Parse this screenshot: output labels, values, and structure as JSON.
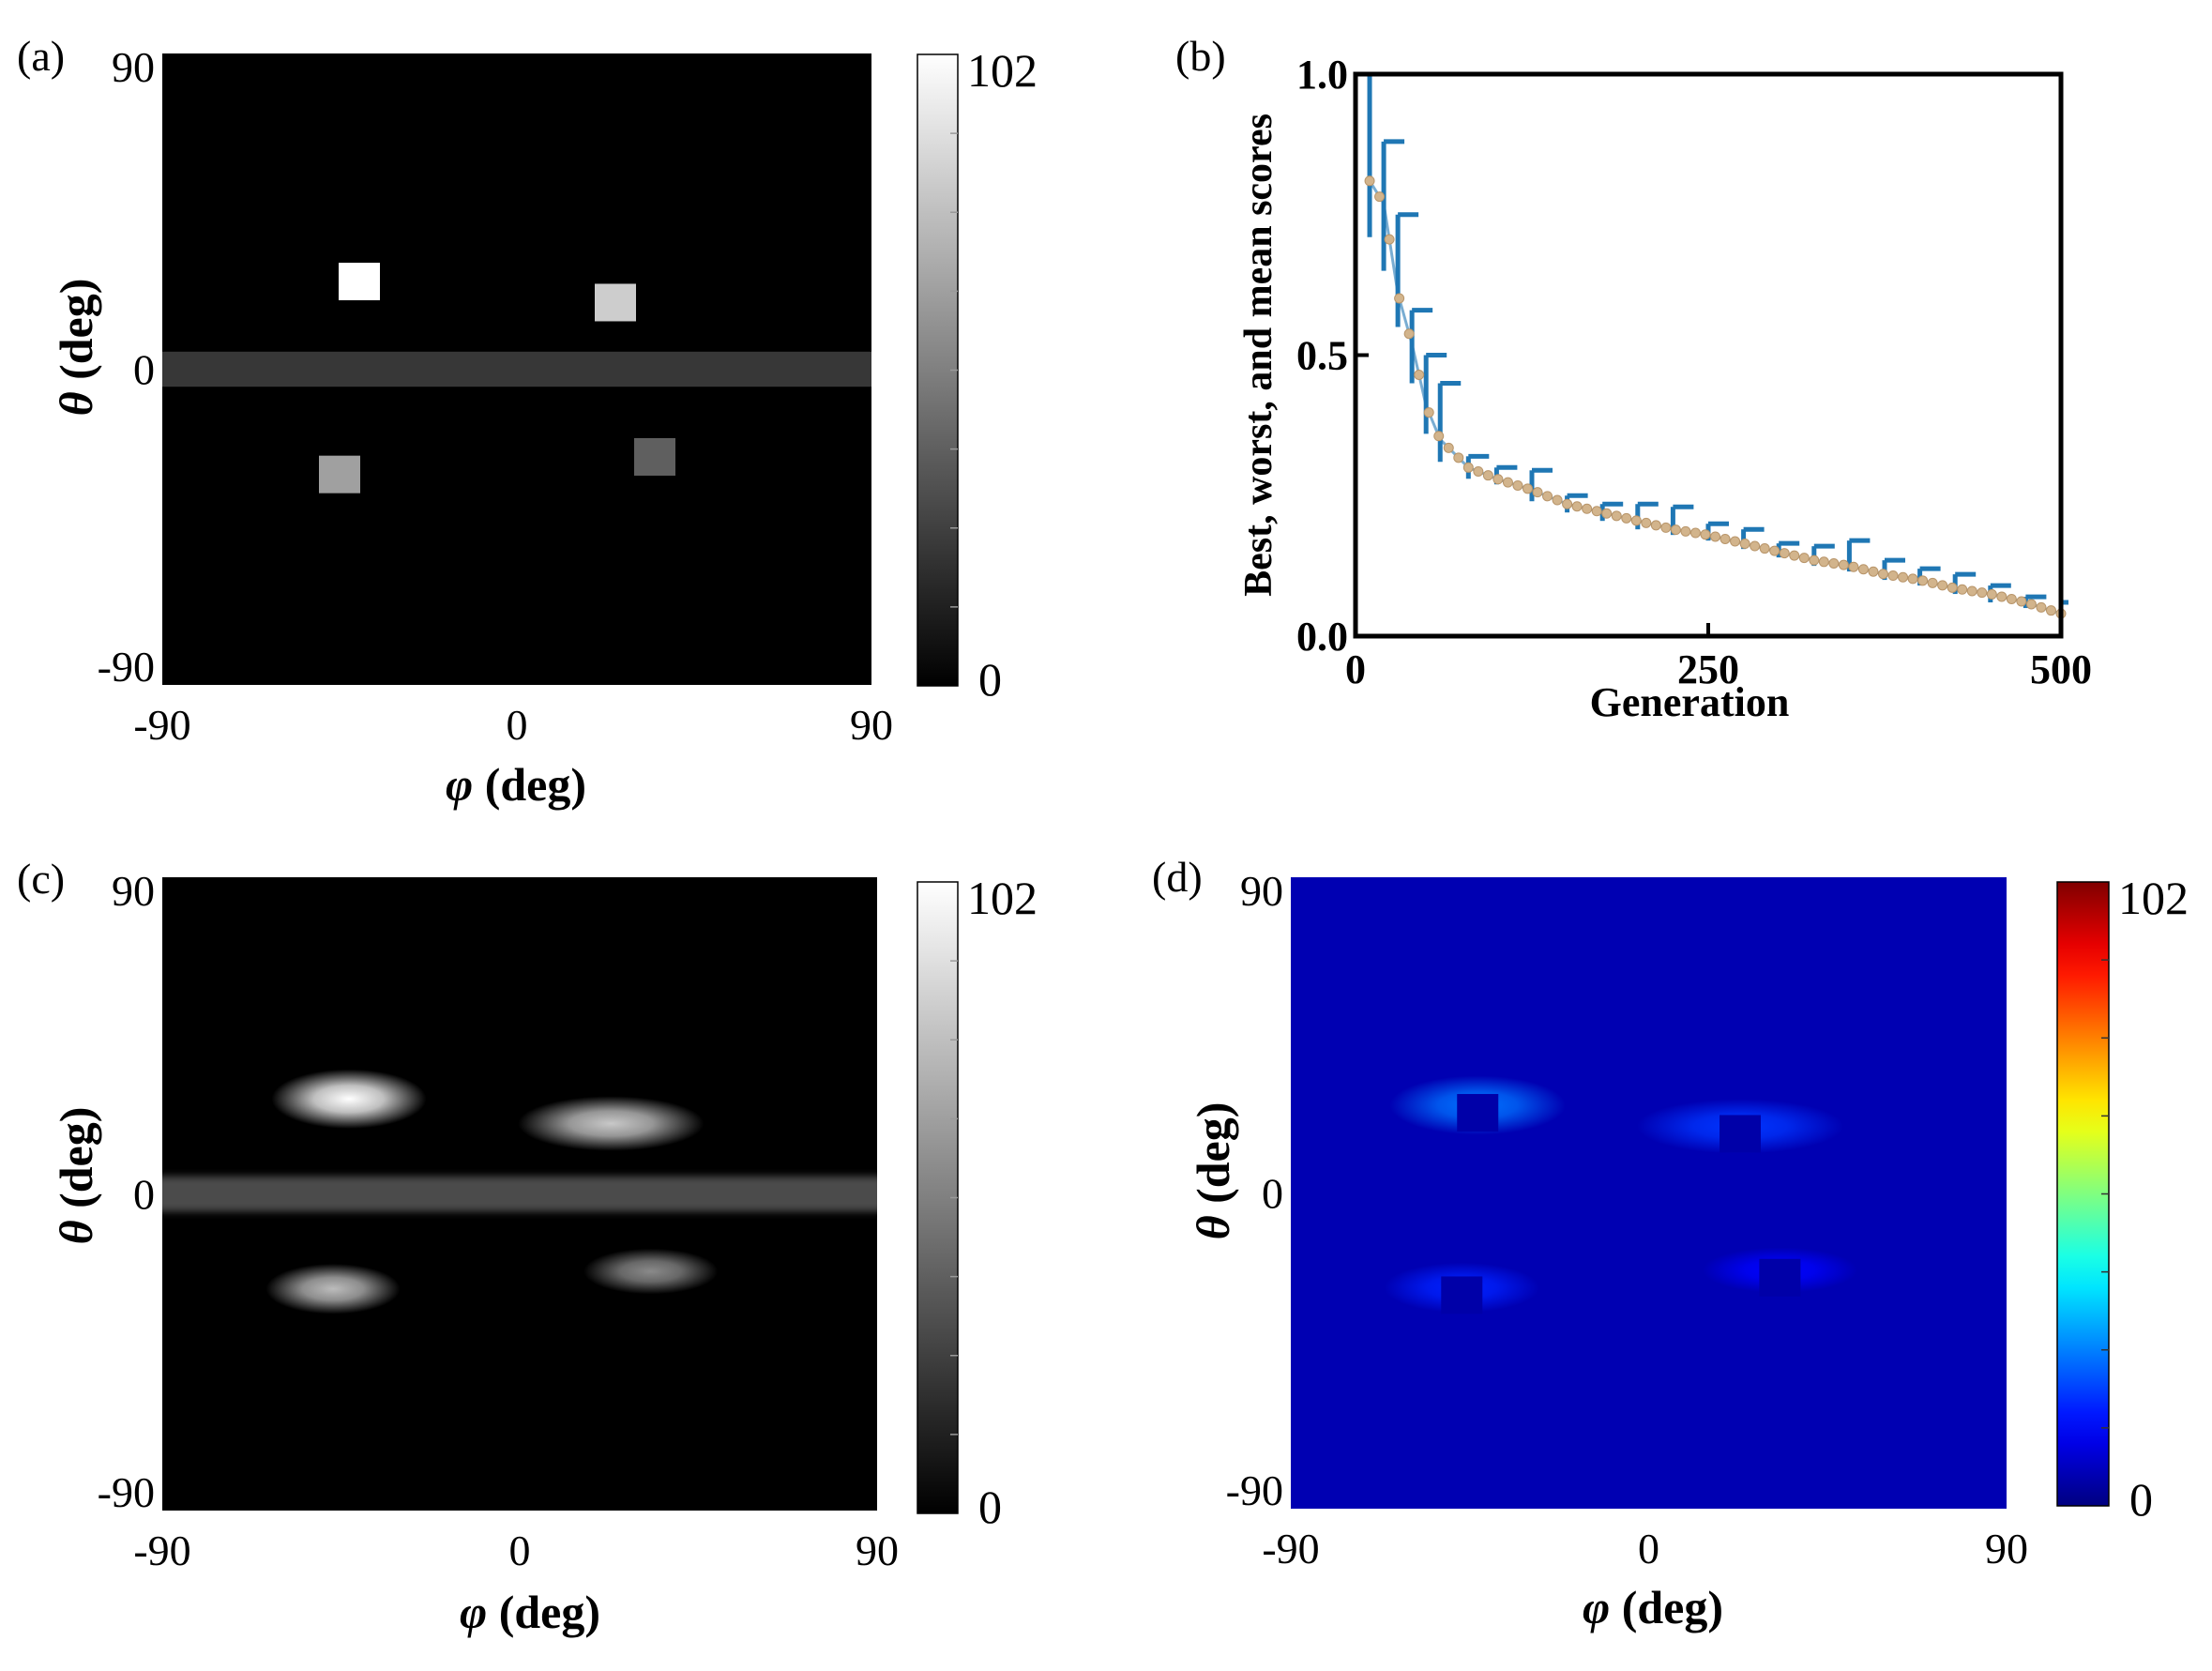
{
  "figure": {
    "panels": {
      "a": {
        "label": "(a)",
        "xlabel_sym": "φ",
        "xlabel_unit": " (deg)",
        "ylabel_sym": "θ",
        "ylabel_unit": " (deg)"
      },
      "b": {
        "label": "(b)"
      },
      "c": {
        "label": "(c)",
        "xlabel_sym": "φ",
        "xlabel_unit": " (deg)",
        "ylabel_sym": "θ",
        "ylabel_unit": " (deg)"
      },
      "d": {
        "label": "(d)",
        "xlabel_sym": "φ",
        "xlabel_unit": " (deg)",
        "ylabel_sym": "θ",
        "ylabel_unit": " (deg)"
      }
    }
  },
  "chart_data": [
    {
      "id": "a",
      "type": "heatmap",
      "title": "",
      "xlabel": "φ (deg)",
      "ylabel": "θ (deg)",
      "xlim": [
        -90,
        90
      ],
      "ylim": [
        -90,
        90
      ],
      "xticks": [
        "-90",
        "0",
        "90"
      ],
      "yticks": [
        "90",
        "0",
        "-90"
      ],
      "colormap": "gray",
      "colorbar": {
        "min": 0,
        "max": 102,
        "labels": [
          "102",
          "0"
        ]
      },
      "background_value": 0,
      "band": {
        "theta_range": [
          -5,
          5
        ],
        "value": 22
      },
      "patches": [
        {
          "phi": -40,
          "theta": 25,
          "value": 102
        },
        {
          "phi": 25,
          "theta": 19,
          "value": 82
        },
        {
          "phi": -45,
          "theta": -30,
          "value": 64
        },
        {
          "phi": 35,
          "theta": -25,
          "value": 38
        }
      ]
    },
    {
      "id": "b",
      "type": "line",
      "title": "",
      "xlabel": "Generation",
      "ylabel": "Best, worst, and mean scores",
      "xlim": [
        0,
        500
      ],
      "ylim": [
        0,
        1
      ],
      "xticks": [
        "0",
        "250",
        "500"
      ],
      "yticks": [
        "0.0",
        "0.5",
        "1.0"
      ],
      "grid": false,
      "series": [
        {
          "kind": "mean-with-range",
          "color": "#1f77b4",
          "marker_color": "#d2b48c",
          "x": [
            10,
            20,
            30,
            40,
            50,
            60,
            80,
            100,
            125,
            150,
            175,
            200,
            225,
            250,
            275,
            300,
            325,
            350,
            375,
            400,
            425,
            450,
            475,
            500
          ],
          "mean": [
            0.81,
            0.77,
            0.61,
            0.52,
            0.41,
            0.35,
            0.3,
            0.28,
            0.26,
            0.235,
            0.22,
            0.205,
            0.19,
            0.18,
            0.165,
            0.15,
            0.135,
            0.125,
            0.11,
            0.1,
            0.085,
            0.075,
            0.06,
            0.04
          ],
          "upper": [
            1.0,
            0.88,
            0.75,
            0.58,
            0.5,
            0.45,
            0.32,
            0.3,
            0.295,
            0.25,
            0.235,
            0.235,
            0.23,
            0.2,
            0.19,
            0.165,
            0.16,
            0.17,
            0.135,
            0.12,
            0.11,
            0.09,
            0.07,
            0.06
          ],
          "lower": [
            0.71,
            0.65,
            0.55,
            0.45,
            0.36,
            0.31,
            0.28,
            0.27,
            0.24,
            0.22,
            0.205,
            0.19,
            0.18,
            0.17,
            0.155,
            0.14,
            0.125,
            0.115,
            0.1,
            0.09,
            0.075,
            0.06,
            0.05,
            0.035
          ]
        }
      ]
    },
    {
      "id": "c",
      "type": "heatmap",
      "title": "",
      "xlabel": "φ (deg)",
      "ylabel": "θ (deg)",
      "xlim": [
        -90,
        90
      ],
      "ylim": [
        -90,
        90
      ],
      "xticks": [
        "-90",
        "0",
        "90"
      ],
      "yticks": [
        "90",
        "0",
        "-90"
      ],
      "colormap": "gray",
      "colorbar": {
        "min": 0,
        "max": 102,
        "labels": [
          "102",
          "0"
        ]
      },
      "background_value": 0,
      "band": {
        "theta_range": [
          -5,
          5
        ],
        "value": 30
      },
      "blobs": [
        {
          "phi": -43,
          "theta": 27,
          "value": 102,
          "width_deg": 30,
          "height_deg": 13
        },
        {
          "phi": 23,
          "theta": 20,
          "value": 80,
          "width_deg": 36,
          "height_deg": 12
        },
        {
          "phi": -47,
          "theta": -27,
          "value": 75,
          "width_deg": 26,
          "height_deg": 11
        },
        {
          "phi": 33,
          "theta": -22,
          "value": 55,
          "width_deg": 26,
          "height_deg": 10
        }
      ]
    },
    {
      "id": "d",
      "type": "heatmap",
      "title": "",
      "xlabel": "φ (deg)",
      "ylabel": "θ (deg)",
      "xlim": [
        -90,
        90
      ],
      "ylim": [
        -90,
        90
      ],
      "xticks": [
        "-90",
        "0",
        "90"
      ],
      "yticks": [
        "90",
        "0",
        "-90"
      ],
      "colormap": "jet",
      "colorbar": {
        "min": 0,
        "max": 102,
        "labels": [
          "102",
          "0"
        ]
      },
      "background_value": 5,
      "blobs": [
        {
          "phi": -43,
          "theta": 25,
          "value": 24,
          "width_deg": 34,
          "height_deg": 13
        },
        {
          "phi": 23,
          "theta": 19,
          "value": 18,
          "width_deg": 40,
          "height_deg": 12
        },
        {
          "phi": -47,
          "theta": -27,
          "value": 16,
          "width_deg": 30,
          "height_deg": 11
        },
        {
          "phi": 33,
          "theta": -22,
          "value": 13,
          "width_deg": 30,
          "height_deg": 10
        }
      ],
      "holes": [
        {
          "phi": -43,
          "theta": 25,
          "value": 4
        },
        {
          "phi": 23,
          "theta": 19,
          "value": 4
        },
        {
          "phi": -47,
          "theta": -27,
          "value": 4
        },
        {
          "phi": 33,
          "theta": -22,
          "value": 4
        }
      ]
    }
  ]
}
